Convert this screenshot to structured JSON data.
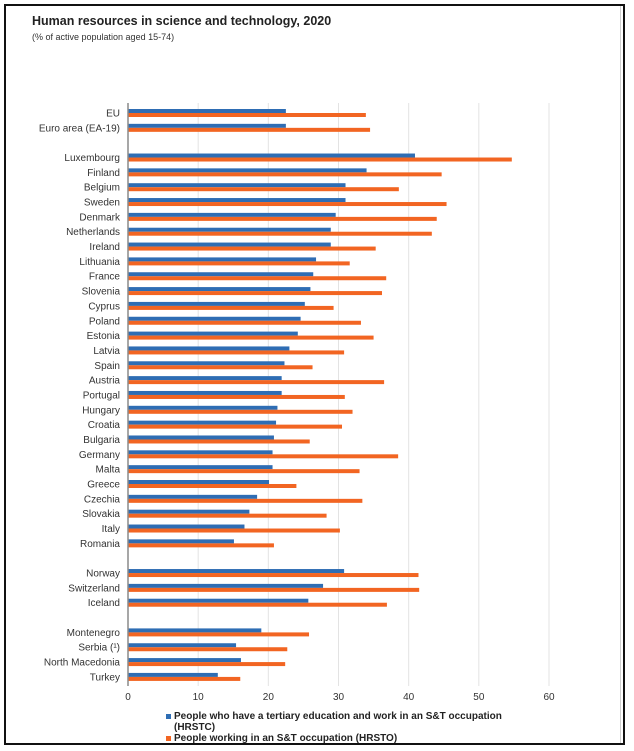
{
  "chart_data": {
    "type": "bar",
    "orientation": "horizontal",
    "title": "Human resources in science and technology, 2020",
    "subtitle": "(% of active population aged 15-74)",
    "xlabel": "",
    "ylabel": "",
    "xlim": [
      0,
      60
    ],
    "xticks": [
      0,
      10,
      20,
      30,
      40,
      50,
      60
    ],
    "grid": true,
    "legend_position": "bottom",
    "groups": [
      [
        "EU",
        "Euro area (EA-19)"
      ],
      [
        "Luxembourg",
        "Finland",
        "Belgium",
        "Sweden",
        "Denmark",
        "Netherlands",
        "Ireland",
        "Lithuania",
        "France",
        "Slovenia",
        "Cyprus",
        "Poland",
        "Estonia",
        "Latvia",
        "Spain",
        "Austria",
        "Portugal",
        "Hungary",
        "Croatia",
        "Bulgaria",
        "Germany",
        "Malta",
        "Greece",
        "Czechia",
        "Slovakia",
        "Italy",
        "Romania"
      ],
      [
        "Norway",
        "Switzerland",
        "Iceland"
      ],
      [
        "Montenegro",
        "Serbia (¹)",
        "North Macedonia",
        "Turkey"
      ]
    ],
    "categories": [
      "EU",
      "Euro area (EA-19)",
      "Luxembourg",
      "Finland",
      "Belgium",
      "Sweden",
      "Denmark",
      "Netherlands",
      "Ireland",
      "Lithuania",
      "France",
      "Slovenia",
      "Cyprus",
      "Poland",
      "Estonia",
      "Latvia",
      "Spain",
      "Austria",
      "Portugal",
      "Hungary",
      "Croatia",
      "Bulgaria",
      "Germany",
      "Malta",
      "Greece",
      "Czechia",
      "Slovakia",
      "Italy",
      "Romania",
      "Norway",
      "Switzerland",
      "Iceland",
      "Montenegro",
      "Serbia (¹)",
      "North Macedonia",
      "Turkey"
    ],
    "series": [
      {
        "name": "People who have a tertiary education and work in an S&T occupation (HRSTC)",
        "color": "#2e6db4",
        "values": [
          22.5,
          22.5,
          40.9,
          34.0,
          31.0,
          31.0,
          29.6,
          28.9,
          28.9,
          26.8,
          26.4,
          26.0,
          25.2,
          24.6,
          24.2,
          23.0,
          22.3,
          21.9,
          21.9,
          21.3,
          21.1,
          20.8,
          20.6,
          20.6,
          20.1,
          18.4,
          17.3,
          16.6,
          15.1,
          30.8,
          27.8,
          25.7,
          19.0,
          15.4,
          16.1,
          12.8
        ]
      },
      {
        "name": "People working in an S&T occupation (HRSTO)",
        "color": "#f26522",
        "values": [
          33.9,
          34.5,
          54.7,
          44.7,
          38.6,
          45.4,
          44.0,
          43.3,
          35.3,
          31.6,
          36.8,
          36.2,
          29.3,
          33.2,
          35.0,
          30.8,
          26.3,
          36.5,
          30.9,
          32.0,
          30.5,
          25.9,
          38.5,
          33.0,
          24.0,
          33.4,
          28.3,
          30.2,
          20.8,
          41.4,
          41.5,
          36.9,
          25.8,
          22.7,
          22.4,
          16.0
        ]
      }
    ]
  },
  "legend": {
    "items": [
      {
        "label": "People who have a tertiary education and work in an S&T occupation (HRSTC)",
        "color": "#2e6db4"
      },
      {
        "label": "People working in an S&T occupation (HRSTO)",
        "color": "#f26522"
      }
    ]
  }
}
